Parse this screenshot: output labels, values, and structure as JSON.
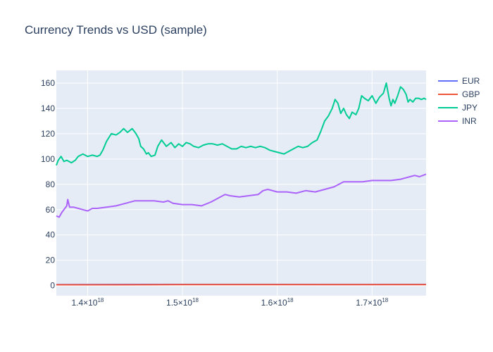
{
  "chart_data": {
    "type": "line",
    "title": "Currency Trends vs USD (sample)",
    "xlabel": "",
    "ylabel": "",
    "xlim": [
      1.367e+18,
      1.757e+18
    ],
    "ylim": [
      -8,
      170
    ],
    "x_ticks": [
      {
        "value": 1.4e+18,
        "mantissa": "1.4×10",
        "exp": "18"
      },
      {
        "value": 1.5e+18,
        "mantissa": "1.5×10",
        "exp": "18"
      },
      {
        "value": 1.6e+18,
        "mantissa": "1.6×10",
        "exp": "18"
      },
      {
        "value": 1.7e+18,
        "mantissa": "1.7×10",
        "exp": "18"
      }
    ],
    "y_ticks": [
      0,
      20,
      40,
      60,
      80,
      100,
      120,
      140,
      160
    ],
    "grid": true,
    "legend_position": "right",
    "series": [
      {
        "name": "EUR",
        "color": "#636efa",
        "x": [
          1.367e+18,
          1.45e+18,
          1.55e+18,
          1.65e+18,
          1.757e+18
        ],
        "y": [
          0.75,
          0.9,
          0.88,
          0.85,
          0.92
        ]
      },
      {
        "name": "GBP",
        "color": "#ef553b",
        "x": [
          1.367e+18,
          1.4e+18,
          1.43e+18,
          1.47e+18,
          1.5e+18,
          1.55e+18,
          1.6e+18,
          1.65e+18,
          1.7e+18,
          1.757e+18
        ],
        "y": [
          0.62,
          0.62,
          0.6,
          0.66,
          0.73,
          0.77,
          0.75,
          0.78,
          0.8,
          0.79
        ]
      },
      {
        "name": "JPY",
        "color": "#00cc96",
        "x": [
          1.367e+18,
          1.369e+18,
          1.372e+18,
          1.375e+18,
          1.378e+18,
          1.383e+18,
          1.387e+18,
          1.39e+18,
          1.395e+18,
          1.4e+18,
          1.405e+18,
          1.41e+18,
          1.413e+18,
          1.416e+18,
          1.42e+18,
          1.425e+18,
          1.43e+18,
          1.434e+18,
          1.438e+18,
          1.442e+18,
          1.447e+18,
          1.451e+18,
          1.454e+18,
          1.456e+18,
          1.459e+18,
          1.462e+18,
          1.464e+18,
          1.467e+18,
          1.471e+18,
          1.474e+18,
          1.478e+18,
          1.483e+18,
          1.488e+18,
          1.492e+18,
          1.496e+18,
          1.5e+18,
          1.504e+18,
          1.508e+18,
          1.512e+18,
          1.517e+18,
          1.522e+18,
          1.527e+18,
          1.532e+18,
          1.537e+18,
          1.542e+18,
          1.547e+18,
          1.552e+18,
          1.557e+18,
          1.562e+18,
          1.567e+18,
          1.572e+18,
          1.577e+18,
          1.582e+18,
          1.587e+18,
          1.592e+18,
          1.597e+18,
          1.602e+18,
          1.607e+18,
          1.612e+18,
          1.617e+18,
          1.622e+18,
          1.627e+18,
          1.632e+18,
          1.637e+18,
          1.642e+18,
          1.646e+18,
          1.65e+18,
          1.654e+18,
          1.658e+18,
          1.661e+18,
          1.664e+18,
          1.667e+18,
          1.67e+18,
          1.673e+18,
          1.676e+18,
          1.679e+18,
          1.683e+18,
          1.686e+18,
          1.689e+18,
          1.692e+18,
          1.696e+18,
          1.7e+18,
          1.704e+18,
          1.708e+18,
          1.712e+18,
          1.715e+18,
          1.718e+18,
          1.72e+18,
          1.722e+18,
          1.724e+18,
          1.727e+18,
          1.73e+18,
          1.733e+18,
          1.736e+18,
          1.738e+18,
          1.74e+18,
          1.743e+18,
          1.746e+18,
          1.749e+18,
          1.752e+18,
          1.755e+18,
          1.757e+18
        ],
        "y": [
          95,
          99,
          102,
          98,
          99,
          97,
          99,
          102,
          104,
          102,
          103,
          102,
          103,
          107,
          114,
          120,
          119,
          121,
          124,
          121,
          124,
          120,
          116,
          110,
          108,
          104,
          105,
          102,
          103,
          110,
          115,
          110,
          113,
          109,
          112,
          110,
          113,
          112,
          110,
          109,
          111,
          112,
          112,
          111,
          112,
          110,
          108,
          108,
          110,
          109,
          110,
          109,
          110,
          109,
          107,
          106,
          105,
          104,
          106,
          108,
          110,
          109,
          110,
          113,
          115,
          122,
          130,
          134,
          140,
          147,
          144,
          136,
          140,
          135,
          132,
          137,
          135,
          140,
          150,
          148,
          146,
          150,
          144,
          149,
          152,
          160,
          148,
          142,
          147,
          144,
          150,
          157,
          155,
          151,
          145,
          147,
          145,
          148,
          148,
          147,
          148,
          147
        ]
      },
      {
        "name": "INR",
        "color": "#ab63fa",
        "x": [
          1.367e+18,
          1.37e+18,
          1.373e+18,
          1.376e+18,
          1.378e+18,
          1.379e+18,
          1.381e+18,
          1.385e+18,
          1.39e+18,
          1.395e+18,
          1.4e+18,
          1.405e+18,
          1.41e+18,
          1.42e+18,
          1.43e+18,
          1.44e+18,
          1.45e+18,
          1.46e+18,
          1.47e+18,
          1.48e+18,
          1.485e+18,
          1.49e+18,
          1.5e+18,
          1.51e+18,
          1.52e+18,
          1.53e+18,
          1.535e+18,
          1.54e+18,
          1.545e+18,
          1.55e+18,
          1.56e+18,
          1.57e+18,
          1.58e+18,
          1.585e+18,
          1.59e+18,
          1.6e+18,
          1.61e+18,
          1.62e+18,
          1.63e+18,
          1.64e+18,
          1.65e+18,
          1.66e+18,
          1.665e+18,
          1.67e+18,
          1.68e+18,
          1.69e+18,
          1.7e+18,
          1.71e+18,
          1.72e+18,
          1.73e+18,
          1.735e+18,
          1.74e+18,
          1.745e+18,
          1.75e+18,
          1.757e+18
        ],
        "y": [
          55,
          54,
          58,
          61,
          63,
          68,
          62,
          62,
          61,
          60,
          59,
          61,
          61,
          62,
          63,
          65,
          67,
          67,
          67,
          66,
          67,
          65,
          64,
          64,
          63,
          66,
          68,
          70,
          72,
          71,
          70,
          71,
          72,
          75,
          76,
          74,
          74,
          73,
          75,
          74,
          76,
          78,
          80,
          82,
          82,
          82,
          83,
          83,
          83,
          84,
          85,
          86,
          87,
          86,
          88
        ]
      }
    ]
  }
}
